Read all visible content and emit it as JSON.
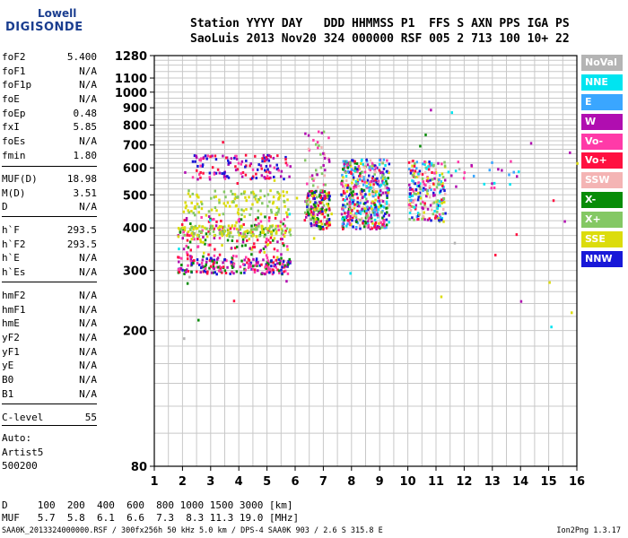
{
  "logo": {
    "line1": "Lowell",
    "line2": "DIGISONDE"
  },
  "header": {
    "line1": "Station YYYY DAY   DDD HHMMSS P1  FFS S AXN PPS IGA PS",
    "line2": "SaoLuis 2013 Nov20 324 000000 RSF 005 2 713 100 10+ 22"
  },
  "params": {
    "group1": [
      {
        "label": "foF2",
        "value": "5.400"
      },
      {
        "label": "foF1",
        "value": "N/A"
      },
      {
        "label": "foF1p",
        "value": "N/A"
      },
      {
        "label": "foE",
        "value": "N/A"
      },
      {
        "label": "foEp",
        "value": "0.48"
      },
      {
        "label": "fxI",
        "value": "5.85"
      },
      {
        "label": "foEs",
        "value": "N/A"
      },
      {
        "label": "fmin",
        "value": "1.80"
      }
    ],
    "group2": [
      {
        "label": "MUF(D)",
        "value": "18.98"
      },
      {
        "label": "M(D)",
        "value": "3.51"
      },
      {
        "label": "D",
        "value": "N/A"
      }
    ],
    "group3": [
      {
        "label": "h`F",
        "value": "293.5"
      },
      {
        "label": "h`F2",
        "value": "293.5"
      },
      {
        "label": "h`E",
        "value": "N/A"
      },
      {
        "label": "h`Es",
        "value": "N/A"
      }
    ],
    "group4": [
      {
        "label": "hmF2",
        "value": "N/A"
      },
      {
        "label": "hmF1",
        "value": "N/A"
      },
      {
        "label": "hmE",
        "value": "N/A"
      },
      {
        "label": "yF2",
        "value": "N/A"
      },
      {
        "label": "yF1",
        "value": "N/A"
      },
      {
        "label": "yE",
        "value": "N/A"
      },
      {
        "label": "B0",
        "value": "N/A"
      },
      {
        "label": "B1",
        "value": "N/A"
      }
    ],
    "group5": [
      {
        "label": "C-level",
        "value": "55"
      }
    ]
  },
  "auto": {
    "line1": "Auto:",
    "line2": "Artist5",
    "line3": "500200"
  },
  "legend": [
    {
      "label": "NoVal",
      "color": "#b4b4b4"
    },
    {
      "label": "NNE",
      "color": "#00e4f0"
    },
    {
      "label": "E",
      "color": "#3aa6ff"
    },
    {
      "label": "W",
      "color": "#b00eb0"
    },
    {
      "label": "Vo-",
      "color": "#ff3aa8"
    },
    {
      "label": "Vo+",
      "color": "#ff1040"
    },
    {
      "label": "SSW",
      "color": "#f4b4b4"
    },
    {
      "label": "X-",
      "color": "#088c08"
    },
    {
      "label": "X+",
      "color": "#84c864"
    },
    {
      "label": "SSE",
      "color": "#dcdc0c"
    },
    {
      "label": "NNW",
      "color": "#1818d8"
    }
  ],
  "bottom": {
    "line1": "D     100  200  400  600  800 1000 1500 3000 [km]",
    "line2": "MUF   5.7  5.8  6.1  6.6  7.3  8.3 11.3 19.0 [MHz]"
  },
  "footer": {
    "left": "SAA0K_2013324000000.RSF / 300fx256h 50 kHz 5.0 km / DPS-4 SAA0K 903 / 2.6 S 315.8 E",
    "right": "Ion2Png 1.3.17"
  },
  "chart_data": {
    "type": "scatter",
    "xlim": [
      1,
      16
    ],
    "ylim": [
      80,
      1280
    ],
    "xticks": [
      1,
      2,
      3,
      4,
      5,
      6,
      7,
      8,
      9,
      10,
      11,
      12,
      13,
      14,
      15,
      16
    ],
    "yticks": [
      80,
      200,
      300,
      400,
      500,
      600,
      700,
      800,
      900,
      1000,
      1100,
      1280
    ],
    "yscale": "log",
    "grid": true,
    "clusters": [
      {
        "x": [
          1.8,
          5.8
        ],
        "y": [
          295,
          330
        ],
        "n": 220,
        "colors": [
          "#ff1040",
          "#b00eb0",
          "#ff3aa8",
          "#1818d8",
          "#088c08"
        ]
      },
      {
        "x": [
          1.8,
          5.8
        ],
        "y": [
          330,
          440
        ],
        "n": 180,
        "colors": [
          "#ff1040",
          "#b00eb0",
          "#ff3aa8",
          "#dcdc0c",
          "#088c08"
        ]
      },
      {
        "x": [
          1.8,
          5.8
        ],
        "y": [
          380,
          410
        ],
        "n": 140,
        "colors": [
          "#dcdc0c",
          "#84c864"
        ]
      },
      {
        "x": [
          2.0,
          5.8
        ],
        "y": [
          440,
          520
        ],
        "n": 120,
        "colors": [
          "#dcdc0c",
          "#84c864"
        ]
      },
      {
        "x": [
          2.3,
          5.8
        ],
        "y": [
          560,
          660
        ],
        "n": 130,
        "colors": [
          "#b00eb0",
          "#ff3aa8",
          "#ff1040",
          "#1818d8"
        ]
      },
      {
        "x": [
          6.3,
          7.2
        ],
        "y": [
          400,
          520
        ],
        "n": 180,
        "colors": [
          "#088c08",
          "#84c864",
          "#dcdc0c",
          "#ff1040",
          "#1818d8",
          "#b00eb0"
        ]
      },
      {
        "x": [
          6.3,
          7.2
        ],
        "y": [
          520,
          790
        ],
        "n": 40,
        "colors": [
          "#f4b4b4",
          "#84c864",
          "#ff3aa8",
          "#b00eb0"
        ]
      },
      {
        "x": [
          7.6,
          9.3
        ],
        "y": [
          400,
          640
        ],
        "n": 500,
        "colors": [
          "#00e4f0",
          "#3aa6ff",
          "#b00eb0",
          "#ff3aa8",
          "#ff1040",
          "#088c08",
          "#84c864",
          "#dcdc0c",
          "#1818d8",
          "#f4b4b4"
        ]
      },
      {
        "x": [
          10.0,
          11.3
        ],
        "y": [
          420,
          640
        ],
        "n": 220,
        "colors": [
          "#00e4f0",
          "#3aa6ff",
          "#b00eb0",
          "#ff3aa8",
          "#ff1040",
          "#f4b4b4",
          "#84c864",
          "#dcdc0c",
          "#1818d8"
        ]
      },
      {
        "x": [
          11.3,
          14.0
        ],
        "y": [
          520,
          640
        ],
        "n": 25,
        "colors": [
          "#00e4f0",
          "#3aa6ff",
          "#ff3aa8",
          "#b00eb0"
        ]
      },
      {
        "x": [
          1.5,
          16.0
        ],
        "y": [
          190,
          900
        ],
        "n": 40,
        "colors": [
          "#b00eb0",
          "#ff1040",
          "#00e4f0",
          "#b4b4b4",
          "#088c08",
          "#dcdc0c"
        ]
      }
    ]
  }
}
